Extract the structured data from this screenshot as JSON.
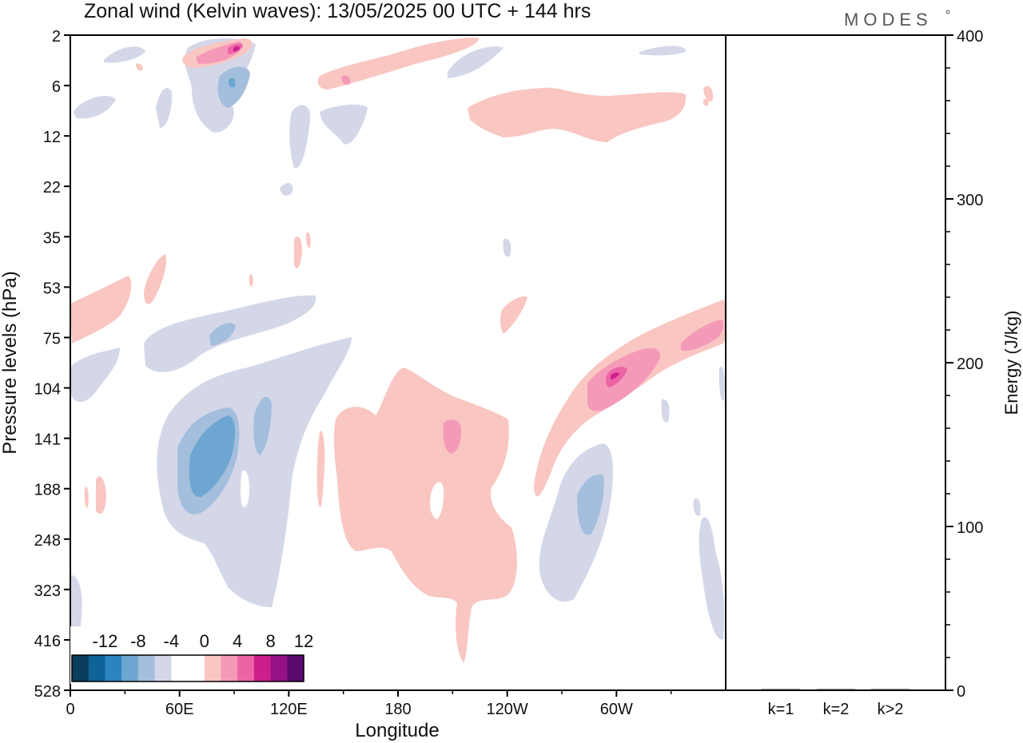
{
  "title": "Zonal wind (Kelvin waves):  13/05/2025  00 UTC  + 144 hrs",
  "logo": "MODES",
  "chart_data": [
    {
      "type": "heatmap",
      "title": "Zonal wind (Kelvin waves):  13/05/2025  00 UTC  + 144 hrs",
      "xlabel": "Longitude",
      "ylabel": "Pressure levels (hPa)",
      "x_ticks": [
        "0",
        "60E",
        "120E",
        "180",
        "120W",
        "60W"
      ],
      "x_tick_values": [
        0,
        60,
        120,
        180,
        240,
        300
      ],
      "xlim": [
        0,
        360
      ],
      "y_ticks": [
        "2",
        "6",
        "12",
        "22",
        "35",
        "53",
        "75",
        "104",
        "141",
        "188",
        "248",
        "323",
        "416",
        "528"
      ],
      "y_scale": "pressure levels, top to bottom",
      "colorbar": {
        "labels": [
          "-12",
          "-8",
          "-4",
          "0",
          "4",
          "8",
          "12"
        ],
        "colors": [
          "#0b3d5c",
          "#0f6396",
          "#2b84bf",
          "#6da6d1",
          "#a4bedd",
          "#d4d7e8",
          "#ffffff",
          "#ffffff",
          "#f9c6c2",
          "#f49ab8",
          "#ec64a6",
          "#cc1f8c",
          "#961186",
          "#5a0a6e"
        ]
      },
      "anomalies": [
        {
          "sign": "negative",
          "level": -4,
          "lon": [
            60,
            96
          ],
          "level_range": [
            "75",
            "188"
          ]
        },
        {
          "sign": "negative",
          "level": -12,
          "lon": [
            66,
            88
          ],
          "level_range": [
            "104",
            "188"
          ]
        },
        {
          "sign": "positive",
          "level": 4,
          "lon": [
            145,
            240
          ],
          "level_range": [
            "104",
            "416"
          ]
        },
        {
          "sign": "positive",
          "level": 8,
          "lon": [
            275,
            360
          ],
          "level_range": [
            "75",
            "141"
          ]
        },
        {
          "sign": "negative",
          "level": -4,
          "lon": [
            258,
            296
          ],
          "level_range": [
            "141",
            "323"
          ]
        },
        {
          "sign": "positive",
          "level": 4,
          "lon": [
            0,
            36
          ],
          "level_range": [
            "53",
            "75"
          ]
        },
        {
          "sign": "positive",
          "level": 4,
          "lon": [
            220,
            340
          ],
          "level_range": [
            "6",
            "12"
          ]
        },
        {
          "sign": "positive",
          "level": 8,
          "lon": [
            60,
            98
          ],
          "level_range": [
            "2",
            "6"
          ]
        }
      ]
    },
    {
      "type": "bar",
      "ylabel": "Energy (J/kg)",
      "categories": [
        "k=1",
        "k=2",
        "k>2"
      ],
      "values": [
        0.5,
        0.3,
        0.3
      ],
      "ylim": [
        0,
        400
      ],
      "y_ticks": [
        "0",
        "100",
        "200",
        "300",
        "400"
      ]
    }
  ]
}
